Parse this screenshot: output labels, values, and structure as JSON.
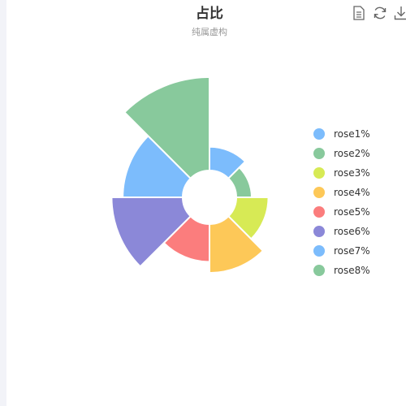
{
  "title": "占比",
  "subtitle": "纯属虚构",
  "toolbox": [
    {
      "name": "data-view",
      "icon": "document-icon"
    },
    {
      "name": "restore",
      "icon": "refresh-icon"
    },
    {
      "name": "save-image",
      "icon": "download-icon"
    }
  ],
  "chart_data": {
    "type": "pie",
    "rose_type": "radius",
    "title": "占比",
    "subtitle": "纯属虚构",
    "legend_position": "right",
    "categories": [
      "rose1%",
      "rose2%",
      "rose3%",
      "rose4%",
      "rose5%",
      "rose6%",
      "rose7%",
      "rose8%"
    ],
    "values": [
      5,
      2,
      8,
      14,
      10,
      22,
      18,
      30
    ],
    "colors": [
      "#7cbcfc",
      "#88c99c",
      "#d7ea55",
      "#fdc858",
      "#fb7d7d",
      "#8b88d8",
      "#7cbcfc",
      "#88c99c"
    ]
  }
}
